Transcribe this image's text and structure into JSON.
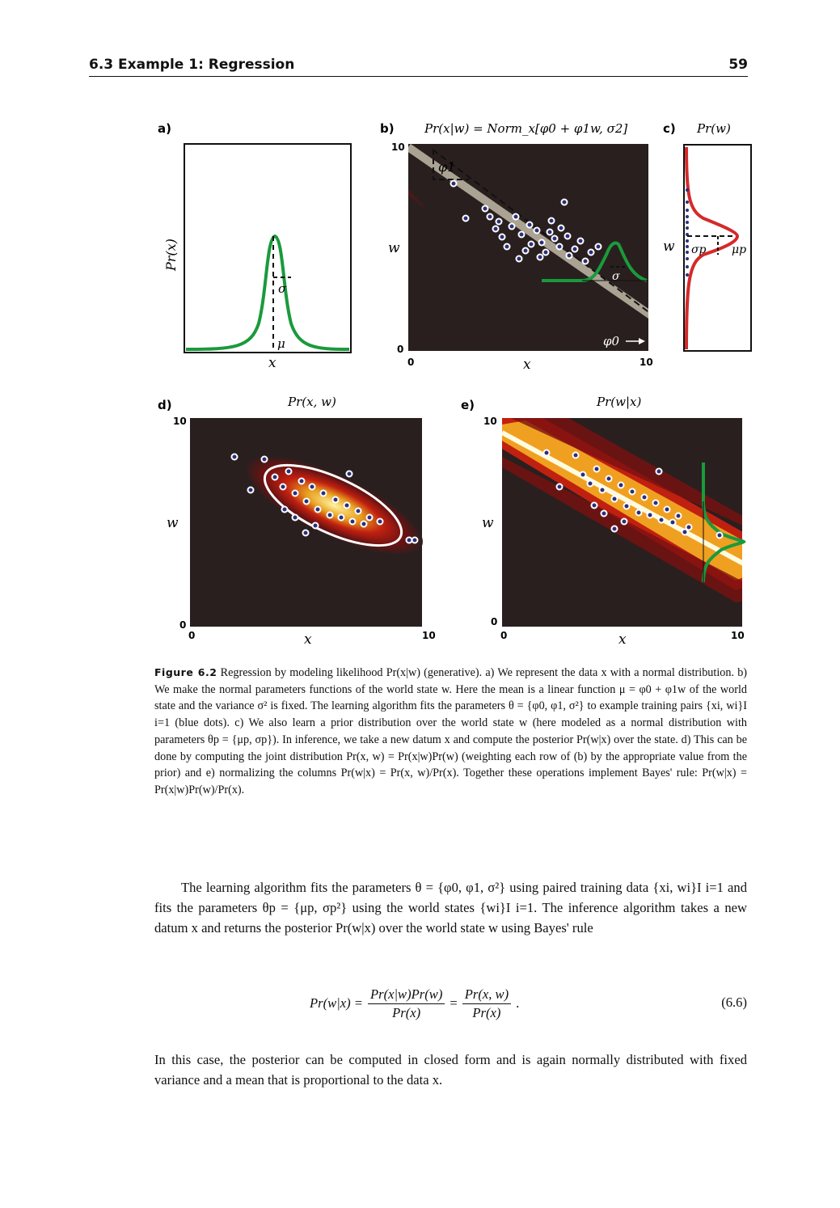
{
  "header": {
    "section": "6.3   Example 1: Regression",
    "page": "59"
  },
  "figure": {
    "panels": {
      "a": {
        "letter": "a)",
        "ylabel": "Pr(x)",
        "xlabel": "x",
        "mu": "μ",
        "sigma": "σ"
      },
      "b": {
        "letter": "b)",
        "title": "Pr(x|w) = Norm_x[φ0 + φ1w, σ2]",
        "ylabel": "w",
        "xlabel": "x",
        "ymax": "10",
        "ymin": "0",
        "xmin": "0",
        "xmax": "10",
        "phi1": "φ1",
        "phi0": "φ0",
        "sigma": "σ"
      },
      "c": {
        "letter": "c)",
        "title": "Pr(w)",
        "ylabel": "w",
        "sigma_p": "σp",
        "mu_p": "μp"
      },
      "d": {
        "letter": "d)",
        "title": "Pr(x, w)",
        "ylabel": "w",
        "xlabel": "x",
        "ymax": "10",
        "ymin": "0",
        "xmin": "0",
        "xmax": "10"
      },
      "e": {
        "letter": "e)",
        "title": "Pr(w|x)",
        "ylabel": "w",
        "xlabel": "x",
        "ymax": "10",
        "ymin": "0",
        "xmin": "0",
        "xmax": "10"
      }
    },
    "colors": {
      "curve": "#1a9a3c",
      "prior": "#d42a2a",
      "dots": "#2b2f7a",
      "bg": "#2a1f1f"
    }
  },
  "caption": {
    "label": "Figure 6.2",
    "text": "Regression by modeling likelihood Pr(x|w) (generative). a) We represent the data x with a normal distribution. b) We make the normal parameters functions of the world state w. Here the mean is a linear function μ = φ0 + φ1w of the world state and the variance σ² is fixed. The learning algorithm fits the parameters θ = {φ0, φ1, σ²} to example training pairs {xi, wi}I i=1 (blue dots). c) We also learn a prior distribution over the world state w (here modeled as a normal distribution with parameters θp = {μp, σp}). In inference, we take a new datum x and compute the posterior Pr(w|x) over the state. d) This can be done by computing the joint distribution Pr(x, w) = Pr(x|w)Pr(w) (weighting each row of (b) by the appropriate value from the prior) and e) normalizing the columns Pr(w|x) = Pr(x, w)/Pr(x). Together these operations implement Bayes' rule: Pr(w|x) = Pr(x|w)Pr(w)/Pr(x)."
  },
  "body": {
    "p1": "The learning algorithm fits the parameters θ = {φ0, φ1, σ²} using paired training data {xi, wi}I i=1 and fits the parameters θp = {μp, σp²} using the world states {wi}I i=1. The inference algorithm takes a new datum x and returns the posterior Pr(w|x) over the world state w using Bayes' rule",
    "equation": {
      "lhs": "Pr(w|x) =",
      "num1": "Pr(x|w)Pr(w)",
      "den1": "Pr(x)",
      "eq": "=",
      "num2": "Pr(x, w)",
      "den2": "Pr(x)",
      "end": ".",
      "number": "(6.6)"
    },
    "p2": "In this case, the posterior can be computed in closed form and is again normally distributed with fixed variance and a mean that is proportional to the data x."
  }
}
